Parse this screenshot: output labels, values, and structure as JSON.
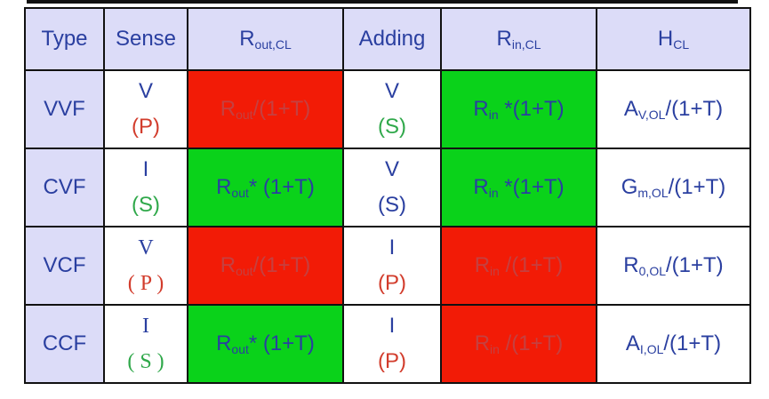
{
  "headers": {
    "type": "Type",
    "sense": "Sense",
    "rout_cl": {
      "base": "R",
      "sub": "out,CL"
    },
    "adding": "Adding",
    "rin_cl": {
      "base": "R",
      "sub": "in,CL"
    },
    "hcl": {
      "base": "H",
      "sub": "CL"
    }
  },
  "rows": [
    {
      "type": "VVF",
      "sense": {
        "sym": "V",
        "tag": "(P)",
        "tag_color": "#d23c2c"
      },
      "rout": {
        "base": "R",
        "sub": "out",
        "rest": "/(1+T)",
        "bg": "#f21b06"
      },
      "adding": {
        "sym": "V",
        "tag": "(S)",
        "tag_color": "#2fa84a"
      },
      "rin": {
        "base": "R",
        "sub": "in",
        "rest": " *(1+T)",
        "bg": "#0ad21a"
      },
      "hcl": {
        "base": "A",
        "sub": "V,OL",
        "rest": "/(1+T)"
      }
    },
    {
      "type": "CVF",
      "sense": {
        "sym": "I",
        "tag": "(S)",
        "tag_color": "#2fa84a"
      },
      "rout": {
        "base": "R",
        "sub": "out",
        "rest": "* (1+T)",
        "bg": "#0ad21a"
      },
      "adding": {
        "sym": "V",
        "tag": "(S)",
        "tag_color": "#2a3fa0"
      },
      "rin": {
        "base": "R",
        "sub": "in",
        "rest": " *(1+T)",
        "bg": "#0ad21a"
      },
      "hcl": {
        "base": "G",
        "sub": "m,OL",
        "rest": "/(1+T)"
      }
    },
    {
      "type": "VCF",
      "sense": {
        "sym": "V",
        "tag": "( P )",
        "tag_color": "#d23c2c"
      },
      "rout": {
        "base": "R",
        "sub": "out",
        "rest": "/(1+T)",
        "bg": "#f21b06"
      },
      "adding": {
        "sym": "I",
        "tag": "(P)",
        "tag_color": "#d23c2c"
      },
      "rin": {
        "base": "R",
        "sub": "in",
        "rest": " /(1+T)",
        "bg": "#f21b06"
      },
      "hcl": {
        "base": "R",
        "sub": "0,OL",
        "rest": "/(1+T)"
      }
    },
    {
      "type": "CCF",
      "sense": {
        "sym": "I",
        "tag": "( S )",
        "tag_color": "#2fa84a"
      },
      "rout": {
        "base": "R",
        "sub": "out",
        "rest": "* (1+T)",
        "bg": "#0ad21a"
      },
      "adding": {
        "sym": "I",
        "tag": "(P)",
        "tag_color": "#d23c2c"
      },
      "rin": {
        "base": "R",
        "sub": "in",
        "rest": " /(1+T)",
        "bg": "#f21b06"
      },
      "hcl": {
        "base": "A",
        "sub": "I,OL",
        "rest": "/(1+T)"
      }
    }
  ]
}
